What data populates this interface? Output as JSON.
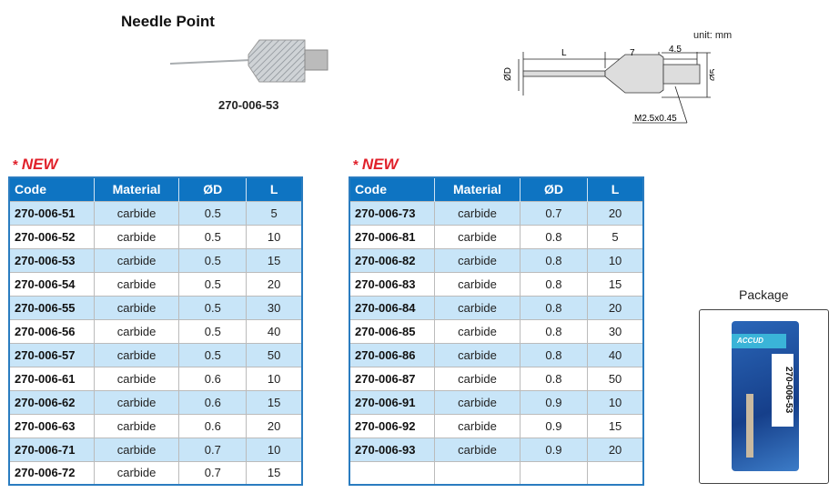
{
  "product": {
    "title": "Needle Point",
    "code": "270-006-53"
  },
  "drawing": {
    "unit": "unit: mm",
    "dim_L": "L",
    "dim_7": "7",
    "dim_45": "4.5",
    "dim_D": "ØD",
    "dim_5": "Ø5",
    "thread": "M2.5x0.45"
  },
  "new_label": "NEW",
  "headers": [
    "Code",
    "Material",
    "ØD",
    "L"
  ],
  "left_table": [
    [
      "270-006-51",
      "carbide",
      "0.5",
      "5"
    ],
    [
      "270-006-52",
      "carbide",
      "0.5",
      "10"
    ],
    [
      "270-006-53",
      "carbide",
      "0.5",
      "15"
    ],
    [
      "270-006-54",
      "carbide",
      "0.5",
      "20"
    ],
    [
      "270-006-55",
      "carbide",
      "0.5",
      "30"
    ],
    [
      "270-006-56",
      "carbide",
      "0.5",
      "40"
    ],
    [
      "270-006-57",
      "carbide",
      "0.5",
      "50"
    ],
    [
      "270-006-61",
      "carbide",
      "0.6",
      "10"
    ],
    [
      "270-006-62",
      "carbide",
      "0.6",
      "15"
    ],
    [
      "270-006-63",
      "carbide",
      "0.6",
      "20"
    ],
    [
      "270-006-71",
      "carbide",
      "0.7",
      "10"
    ],
    [
      "270-006-72",
      "carbide",
      "0.7",
      "15"
    ]
  ],
  "right_table": [
    [
      "270-006-73",
      "carbide",
      "0.7",
      "20"
    ],
    [
      "270-006-81",
      "carbide",
      "0.8",
      "5"
    ],
    [
      "270-006-82",
      "carbide",
      "0.8",
      "10"
    ],
    [
      "270-006-83",
      "carbide",
      "0.8",
      "15"
    ],
    [
      "270-006-84",
      "carbide",
      "0.8",
      "20"
    ],
    [
      "270-006-85",
      "carbide",
      "0.8",
      "30"
    ],
    [
      "270-006-86",
      "carbide",
      "0.8",
      "40"
    ],
    [
      "270-006-87",
      "carbide",
      "0.8",
      "50"
    ],
    [
      "270-006-91",
      "carbide",
      "0.9",
      "10"
    ],
    [
      "270-006-92",
      "carbide",
      "0.9",
      "15"
    ],
    [
      "270-006-93",
      "carbide",
      "0.9",
      "20"
    ],
    [
      "",
      "",
      "",
      ""
    ]
  ],
  "package": {
    "label": "Package",
    "brand": "ACCUD",
    "code": "270-006-53"
  },
  "colors": {
    "header": "#0e74c2",
    "row_alt": "#c8e5f8",
    "new": "#e0202a"
  }
}
